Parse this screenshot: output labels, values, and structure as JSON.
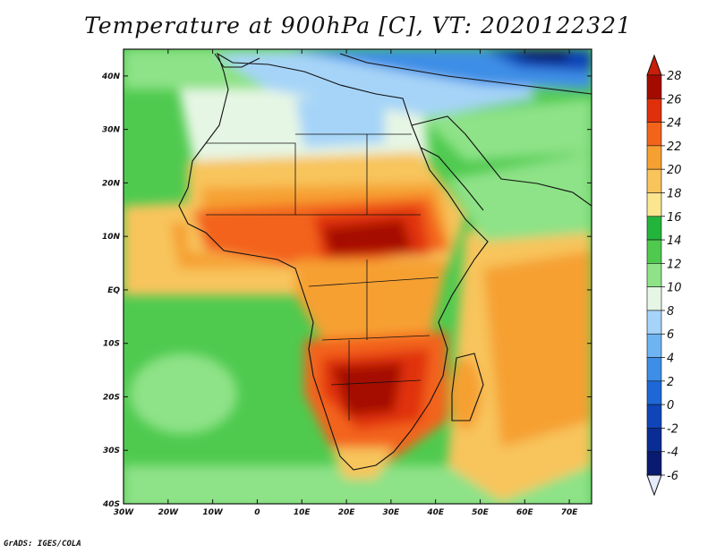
{
  "title": "Temperature at 900hPa [C], VT: 2020122321",
  "footer": "GrADS: IGES/COLA",
  "map": {
    "lon_range": [
      -30,
      75
    ],
    "lat_range": [
      -40,
      45
    ],
    "lat_ticks": [
      {
        "value": 40,
        "label": "40N"
      },
      {
        "value": 30,
        "label": "30N"
      },
      {
        "value": 20,
        "label": "20N"
      },
      {
        "value": 10,
        "label": "10N"
      },
      {
        "value": 0,
        "label": "EQ"
      },
      {
        "value": -10,
        "label": "10S"
      },
      {
        "value": -20,
        "label": "20S"
      },
      {
        "value": -30,
        "label": "30S"
      },
      {
        "value": -40,
        "label": "40S"
      }
    ],
    "lon_ticks": [
      {
        "value": -30,
        "label": "30W"
      },
      {
        "value": -20,
        "label": "20W"
      },
      {
        "value": -10,
        "label": "10W"
      },
      {
        "value": 0,
        "label": "0"
      },
      {
        "value": 10,
        "label": "10E"
      },
      {
        "value": 20,
        "label": "20E"
      },
      {
        "value": 30,
        "label": "30E"
      },
      {
        "value": 40,
        "label": "40E"
      },
      {
        "value": 50,
        "label": "50E"
      },
      {
        "value": 60,
        "label": "60E"
      },
      {
        "value": 70,
        "label": "70E"
      }
    ]
  },
  "colorbar": {
    "levels": [
      {
        "label": "28",
        "color": "#a50a00"
      },
      {
        "label": "26",
        "color": "#e0300b"
      },
      {
        "label": "24",
        "color": "#f3641a"
      },
      {
        "label": "22",
        "color": "#f6a032"
      },
      {
        "label": "20",
        "color": "#f8c45b"
      },
      {
        "label": "18",
        "color": "#fbe58f"
      },
      {
        "label": "16",
        "color": "#23b43c"
      },
      {
        "label": "14",
        "color": "#4fca4f"
      },
      {
        "label": "12",
        "color": "#8ee287"
      },
      {
        "label": "10",
        "color": "#e6f6e4"
      },
      {
        "label": "8",
        "color": "#a6d4f8"
      },
      {
        "label": "6",
        "color": "#6fb4f2"
      },
      {
        "label": "4",
        "color": "#3c8ee6"
      },
      {
        "label": "2",
        "color": "#1d68d6"
      },
      {
        "label": "0",
        "color": "#0f45b8"
      },
      {
        "label": "-2",
        "color": "#0a2d95"
      },
      {
        "label": "-4",
        "color": "#081b70"
      },
      {
        "label": "-6",
        "color": "#dfe6fb"
      }
    ],
    "top_color": "#c81e0a",
    "bottom_color": "#e6ecfb"
  }
}
